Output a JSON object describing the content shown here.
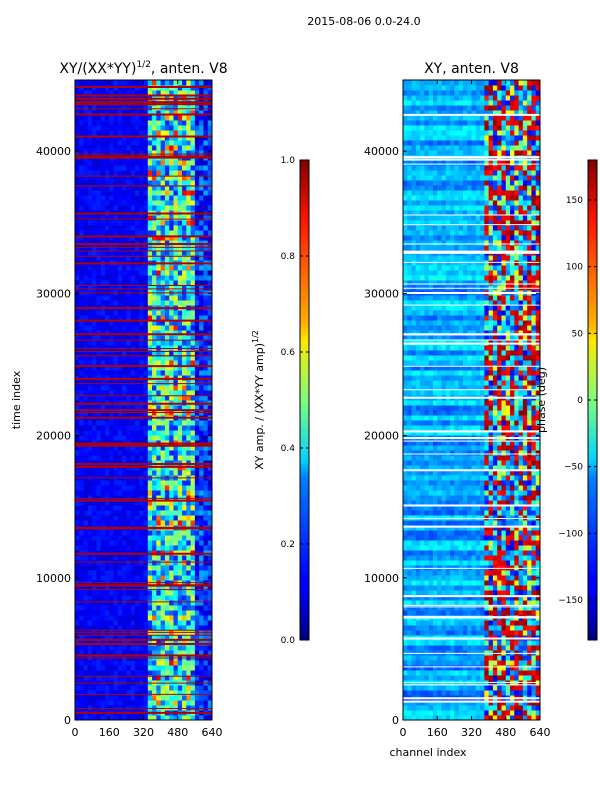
{
  "suptitle": "2015-08-06 0.0-24.0",
  "chart_data": [
    {
      "type": "heatmap",
      "title_main": "XY/(XX*YY)",
      "title_sup": "1/2",
      "title_rest": ", anten. V8",
      "xlabel": "",
      "ylabel": "time index",
      "xlim": [
        0,
        640
      ],
      "ylim": [
        0,
        45000
      ],
      "xticks": [
        "0",
        "160",
        "320",
        "480",
        "640"
      ],
      "yticks": [
        "0",
        "10000",
        "20000",
        "30000",
        "40000"
      ],
      "colorbar": {
        "label_main": "XY amp. / (XX*YY amp)",
        "label_sup": "1/2",
        "range": [
          0.0,
          1.0
        ],
        "ticks": [
          "0.0",
          "0.2",
          "0.4",
          "0.6",
          "0.8",
          "1.0"
        ]
      }
    },
    {
      "type": "heatmap",
      "title_main": "XY, anten. V8",
      "xlabel": "channel index",
      "ylabel": "",
      "xlim": [
        0,
        640
      ],
      "ylim": [
        0,
        45000
      ],
      "xticks": [
        "0",
        "160",
        "320",
        "480",
        "640"
      ],
      "yticks": [
        "0",
        "10000",
        "20000",
        "30000",
        "40000"
      ],
      "colorbar": {
        "label_main": "phase (deg)",
        "range": [
          -180,
          180
        ],
        "ticks": [
          "−150",
          "−100",
          "−50",
          "0",
          "50",
          "100",
          "150"
        ]
      }
    }
  ]
}
